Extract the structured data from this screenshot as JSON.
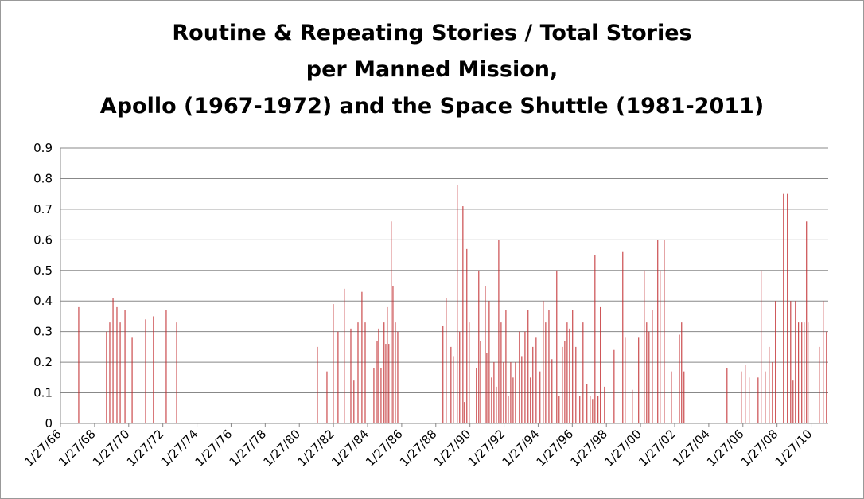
{
  "chart_data": {
    "type": "bar",
    "title": [
      "Routine & Repeating Stories / Total Stories",
      "per Manned Mission,",
      "Apollo (1967-1972) and the Space Shuttle (1981-2011)"
    ],
    "color": "#c0282b",
    "grid": true,
    "x": [
      1967.14,
      1968.77,
      1968.96,
      1969.15,
      1969.38,
      1969.57,
      1969.85,
      1970.27,
      1971.06,
      1971.52,
      1972.27,
      1972.88,
      1981.13,
      1981.69,
      1982.06,
      1982.34,
      1982.71,
      1983.09,
      1983.27,
      1983.51,
      1983.74,
      1983.93,
      1984.44,
      1984.63,
      1984.72,
      1984.86,
      1985.04,
      1985.14,
      1985.23,
      1985.32,
      1985.46,
      1985.56,
      1985.7,
      1985.84,
      1988.49,
      1988.68,
      1988.96,
      1989.1,
      1989.33,
      1989.47,
      1989.66,
      1989.75,
      1989.89,
      1990.03,
      1990.45,
      1990.59,
      1990.69,
      1990.97,
      1991.06,
      1991.2,
      1991.34,
      1991.48,
      1991.62,
      1991.76,
      1991.9,
      1992.04,
      1992.18,
      1992.32,
      1992.46,
      1992.6,
      1992.74,
      1992.97,
      1993.11,
      1993.3,
      1993.48,
      1993.62,
      1993.76,
      1993.95,
      1994.18,
      1994.37,
      1994.51,
      1994.7,
      1994.88,
      1995.16,
      1995.3,
      1995.49,
      1995.63,
      1995.77,
      1995.91,
      1996.09,
      1996.28,
      1996.51,
      1996.7,
      1996.93,
      1997.12,
      1997.26,
      1997.4,
      1997.58,
      1997.72,
      1997.96,
      1998.52,
      1999.03,
      1999.17,
      1999.59,
      1999.96,
      2000.29,
      2000.43,
      2000.57,
      2000.76,
      2001.08,
      2001.22,
      2001.46,
      2001.88,
      2002.35,
      2002.48,
      2002.62,
      2005.14,
      2005.98,
      2006.21,
      2006.44,
      2006.96,
      2007.14,
      2007.38,
      2007.61,
      2007.8,
      2007.98,
      2008.45,
      2008.68,
      2008.87,
      2009.01,
      2009.15,
      2009.33,
      2009.52,
      2009.66,
      2009.8,
      2009.89,
      2010.55,
      2010.78,
      2010.97
    ],
    "values": [
      0.38,
      0.3,
      0.33,
      0.41,
      0.38,
      0.33,
      0.37,
      0.28,
      0.34,
      0.35,
      0.37,
      0.33,
      0.25,
      0.17,
      0.39,
      0.3,
      0.44,
      0.31,
      0.14,
      0.33,
      0.43,
      0.33,
      0.18,
      0.27,
      0.31,
      0.18,
      0.33,
      0.26,
      0.38,
      0.26,
      0.66,
      0.45,
      0.33,
      0.3,
      0.32,
      0.41,
      0.25,
      0.22,
      0.78,
      0.3,
      0.71,
      0.07,
      0.57,
      0.33,
      0.18,
      0.5,
      0.27,
      0.45,
      0.23,
      0.4,
      0.15,
      0.2,
      0.12,
      0.6,
      0.33,
      0.2,
      0.37,
      0.09,
      0.2,
      0.15,
      0.2,
      0.3,
      0.22,
      0.3,
      0.37,
      0.15,
      0.25,
      0.28,
      0.17,
      0.4,
      0.33,
      0.37,
      0.21,
      0.5,
      0.09,
      0.25,
      0.27,
      0.33,
      0.31,
      0.37,
      0.25,
      0.09,
      0.33,
      0.13,
      0.09,
      0.08,
      0.55,
      0.09,
      0.38,
      0.12,
      0.24,
      0.56,
      0.28,
      0.11,
      0.28,
      0.5,
      0.33,
      0.3,
      0.37,
      0.6,
      0.5,
      0.6,
      0.17,
      0.29,
      0.33,
      0.17,
      0.18,
      0.17,
      0.19,
      0.15,
      0.15,
      0.5,
      0.17,
      0.25,
      0.2,
      0.4,
      0.75,
      0.75,
      0.4,
      0.14,
      0.4,
      0.33,
      0.33,
      0.33,
      0.66,
      0.33,
      0.25,
      0.4,
      0.3
    ],
    "xlim": [
      1966.07,
      2011.07
    ],
    "xticks": [
      {
        "value": 1966.07,
        "label": "1/27/66"
      },
      {
        "value": 1968.07,
        "label": "1/27/68"
      },
      {
        "value": 1970.07,
        "label": "1/27/70"
      },
      {
        "value": 1972.07,
        "label": "1/27/72"
      },
      {
        "value": 1974.07,
        "label": "1/27/74"
      },
      {
        "value": 1976.07,
        "label": "1/27/76"
      },
      {
        "value": 1978.07,
        "label": "1/27/78"
      },
      {
        "value": 1980.07,
        "label": "1/27/80"
      },
      {
        "value": 1982.07,
        "label": "1/27/82"
      },
      {
        "value": 1984.07,
        "label": "1/27/84"
      },
      {
        "value": 1986.07,
        "label": "1/27/86"
      },
      {
        "value": 1988.07,
        "label": "1/27/88"
      },
      {
        "value": 1990.07,
        "label": "1/27/90"
      },
      {
        "value": 1992.07,
        "label": "1/27/92"
      },
      {
        "value": 1994.07,
        "label": "1/27/94"
      },
      {
        "value": 1996.07,
        "label": "1/27/96"
      },
      {
        "value": 1998.07,
        "label": "1/27/98"
      },
      {
        "value": 2000.07,
        "label": "1/27/00"
      },
      {
        "value": 2002.07,
        "label": "1/27/02"
      },
      {
        "value": 2004.07,
        "label": "1/27/04"
      },
      {
        "value": 2006.07,
        "label": "1/27/06"
      },
      {
        "value": 2008.07,
        "label": "1/27/08"
      },
      {
        "value": 2010.07,
        "label": "1/27/10"
      }
    ],
    "ylim": [
      0,
      0.9
    ],
    "yticks": [
      0,
      0.1,
      0.2,
      0.3,
      0.4,
      0.5,
      0.6,
      0.7,
      0.8,
      0.9
    ]
  }
}
